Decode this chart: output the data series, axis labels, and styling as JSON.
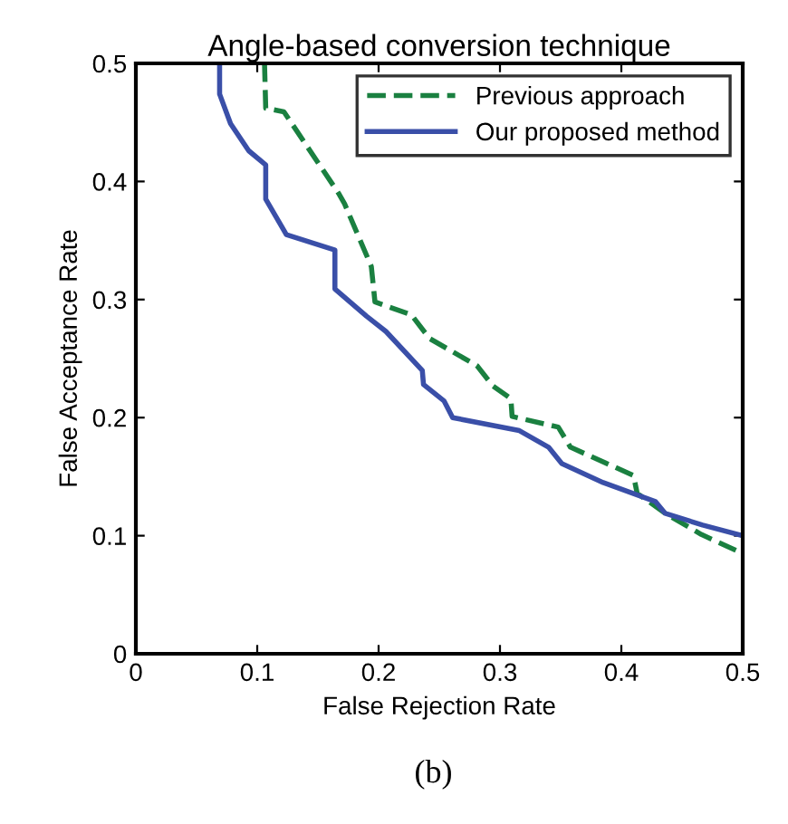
{
  "chart_data": {
    "type": "line",
    "title": "Angle-based conversion technique",
    "xlabel": "False Rejection Rate",
    "ylabel": "False Acceptance Rate",
    "annotations": [
      "(b)"
    ],
    "xlim": [
      0,
      0.5
    ],
    "ylim": [
      0,
      0.5
    ],
    "xticks": [
      {
        "value": 0,
        "label": "0"
      },
      {
        "value": 0.1,
        "label": "0.1"
      },
      {
        "value": 0.2,
        "label": "0.2"
      },
      {
        "value": 0.3,
        "label": "0.3"
      },
      {
        "value": 0.4,
        "label": "0.4"
      },
      {
        "value": 0.5,
        "label": "0.5"
      }
    ],
    "yticks": [
      {
        "value": 0,
        "label": "0"
      },
      {
        "value": 0.1,
        "label": "0.1"
      },
      {
        "value": 0.2,
        "label": "0.2"
      },
      {
        "value": 0.3,
        "label": "0.3"
      },
      {
        "value": 0.4,
        "label": "0.4"
      },
      {
        "value": 0.5,
        "label": "0.5"
      }
    ],
    "grid": false,
    "legend": "top right",
    "series": [
      {
        "name": "Previous approach",
        "color": "#1a8040",
        "line_style": "dashed",
        "x": [
          0.106,
          0.107,
          0.122,
          0.167,
          0.172,
          0.194,
          0.197,
          0.227,
          0.242,
          0.281,
          0.294,
          0.309,
          0.31,
          0.348,
          0.358,
          0.41,
          0.413,
          0.436,
          0.466,
          0.5
        ],
        "values": [
          0.5,
          0.462,
          0.459,
          0.39,
          0.381,
          0.328,
          0.298,
          0.287,
          0.267,
          0.244,
          0.227,
          0.216,
          0.201,
          0.192,
          0.175,
          0.151,
          0.136,
          0.119,
          0.101,
          0.085
        ]
      },
      {
        "name": "Our proposed method",
        "color": "#3a4fa8",
        "line_style": "solid",
        "x": [
          0.069,
          0.069,
          0.078,
          0.093,
          0.107,
          0.107,
          0.124,
          0.164,
          0.164,
          0.19,
          0.206,
          0.236,
          0.237,
          0.254,
          0.261,
          0.316,
          0.34,
          0.351,
          0.385,
          0.428,
          0.436,
          0.467,
          0.5
        ],
        "values": [
          0.5,
          0.474,
          0.449,
          0.426,
          0.414,
          0.385,
          0.355,
          0.342,
          0.309,
          0.286,
          0.273,
          0.24,
          0.228,
          0.214,
          0.2,
          0.189,
          0.175,
          0.161,
          0.145,
          0.129,
          0.119,
          0.109,
          0.1
        ]
      }
    ]
  }
}
